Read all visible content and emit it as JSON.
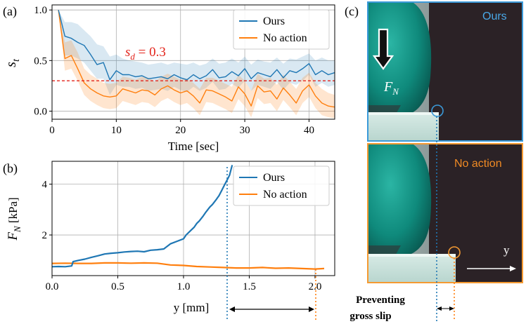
{
  "panels": {
    "a": {
      "label": "(a)"
    },
    "b": {
      "label": "(b)"
    },
    "c": {
      "label": "(c)"
    }
  },
  "photos": {
    "top_label": "Ours",
    "bottom_label": "No action",
    "force_symbol": "F",
    "force_subscript": "N",
    "axis_label": "y"
  },
  "annotation": {
    "line1": "Preventing",
    "line2": "gross slip"
  },
  "colors": {
    "ours": "#1f77b4",
    "no_action": "#ff7f0e",
    "threshold": "#e3241b",
    "grid": "#b0b0b0",
    "photo_top_border": "#3b9ad9",
    "photo_bottom_border": "#f59a32",
    "photo_ours_text": "#49a8e8",
    "photo_noaction_text": "#f08a24"
  },
  "chart_data": [
    {
      "id": "a",
      "type": "line",
      "title": "",
      "xlabel": "Time [sec]",
      "ylabel_symbol": "s",
      "ylabel_subscript": "t",
      "xlim": [
        0,
        44
      ],
      "ylim": [
        -0.08,
        1.05
      ],
      "xticks": [
        0,
        10,
        20,
        30,
        40
      ],
      "yticks": [
        0.0,
        0.5,
        1.0
      ],
      "xtick_labels": [
        "0",
        "10",
        "20",
        "30",
        "40"
      ],
      "ytick_labels": [
        "0.0",
        "0.5",
        "1.0"
      ],
      "grid": true,
      "legend_position": "top-right",
      "threshold": {
        "value": 0.3,
        "label_symbol": "s",
        "label_subscript": "d",
        "label_value": " = 0.3"
      },
      "series": [
        {
          "name": "Ours",
          "x": [
            1,
            2,
            3,
            4,
            5,
            6,
            7,
            8,
            9,
            10,
            11,
            12,
            13,
            14,
            15,
            16,
            17,
            18,
            19,
            20,
            21,
            22,
            23,
            24,
            25,
            26,
            27,
            28,
            29,
            30,
            31,
            32,
            33,
            34,
            35,
            36,
            37,
            38,
            39,
            40,
            41,
            42,
            43,
            44
          ],
          "values": [
            1.0,
            0.74,
            0.72,
            0.68,
            0.65,
            0.56,
            0.46,
            0.48,
            0.31,
            0.4,
            0.36,
            0.36,
            0.34,
            0.35,
            0.32,
            0.33,
            0.34,
            0.32,
            0.36,
            0.33,
            0.31,
            0.36,
            0.32,
            0.35,
            0.41,
            0.33,
            0.34,
            0.39,
            0.35,
            0.42,
            0.32,
            0.38,
            0.36,
            0.34,
            0.41,
            0.33,
            0.4,
            0.38,
            0.42,
            0.47,
            0.36,
            0.4,
            0.36,
            0.38
          ],
          "upper": [
            1.0,
            0.88,
            0.88,
            0.86,
            0.8,
            0.74,
            0.66,
            0.64,
            0.54,
            0.56,
            0.52,
            0.5,
            0.49,
            0.48,
            0.46,
            0.47,
            0.48,
            0.46,
            0.48,
            0.47,
            0.46,
            0.48,
            0.45,
            0.47,
            0.52,
            0.47,
            0.48,
            0.52,
            0.48,
            0.54,
            0.46,
            0.51,
            0.49,
            0.48,
            0.53,
            0.47,
            0.52,
            0.51,
            0.54,
            0.57,
            0.5,
            0.53,
            0.5,
            0.5
          ],
          "lower": [
            1.0,
            0.55,
            0.55,
            0.52,
            0.48,
            0.4,
            0.32,
            0.32,
            0.16,
            0.26,
            0.24,
            0.24,
            0.22,
            0.23,
            0.2,
            0.21,
            0.22,
            0.2,
            0.24,
            0.21,
            0.19,
            0.24,
            0.2,
            0.23,
            0.29,
            0.21,
            0.22,
            0.27,
            0.23,
            0.3,
            0.2,
            0.26,
            0.24,
            0.22,
            0.29,
            0.21,
            0.28,
            0.26,
            0.3,
            0.36,
            0.24,
            0.28,
            0.24,
            0.26
          ]
        },
        {
          "name": "No action",
          "x": [
            1,
            2,
            3,
            4,
            5,
            6,
            7,
            8,
            9,
            10,
            11,
            12,
            13,
            14,
            15,
            16,
            17,
            18,
            19,
            20,
            21,
            22,
            23,
            24,
            25,
            26,
            27,
            28,
            29,
            30,
            31,
            32,
            33,
            34,
            35,
            36,
            37,
            38,
            39,
            40,
            41,
            42,
            43,
            44
          ],
          "values": [
            1.0,
            0.52,
            0.55,
            0.42,
            0.28,
            0.22,
            0.18,
            0.15,
            0.14,
            0.15,
            0.22,
            0.2,
            0.18,
            0.21,
            0.2,
            0.16,
            0.22,
            0.25,
            0.21,
            0.18,
            0.2,
            0.15,
            0.08,
            0.21,
            0.2,
            0.17,
            0.14,
            0.1,
            0.24,
            0.17,
            0.05,
            0.25,
            0.19,
            0.2,
            0.12,
            0.23,
            0.16,
            0.08,
            0.2,
            0.26,
            0.15,
            0.08,
            0.05,
            0.04
          ],
          "upper": [
            1.0,
            0.68,
            0.7,
            0.58,
            0.42,
            0.36,
            0.32,
            0.28,
            0.27,
            0.28,
            0.34,
            0.33,
            0.31,
            0.34,
            0.33,
            0.29,
            0.34,
            0.37,
            0.34,
            0.31,
            0.32,
            0.28,
            0.22,
            0.33,
            0.33,
            0.3,
            0.27,
            0.24,
            0.36,
            0.3,
            0.2,
            0.37,
            0.32,
            0.33,
            0.26,
            0.36,
            0.29,
            0.22,
            0.33,
            0.38,
            0.28,
            0.22,
            0.18,
            0.16
          ],
          "lower": [
            1.0,
            0.4,
            0.42,
            0.3,
            0.16,
            0.1,
            0.06,
            0.03,
            0.02,
            0.03,
            0.1,
            0.08,
            0.06,
            0.09,
            0.08,
            0.04,
            0.1,
            0.13,
            0.09,
            0.06,
            0.08,
            0.03,
            -0.04,
            0.09,
            0.08,
            0.05,
            0.02,
            -0.02,
            0.12,
            0.05,
            -0.06,
            0.13,
            0.07,
            0.08,
            0.0,
            0.11,
            0.04,
            -0.04,
            0.08,
            0.14,
            0.03,
            -0.04,
            -0.06,
            -0.07
          ]
        }
      ]
    },
    {
      "id": "b",
      "type": "line",
      "title": "",
      "xlabel": "y [mm]",
      "ylabel_symbol": "F",
      "ylabel_subscript": "N",
      "ylabel_unit": " [kPa]",
      "xlim": [
        0.0,
        2.15
      ],
      "ylim": [
        0.4,
        4.9
      ],
      "xticks": [
        0.0,
        0.5,
        1.0,
        1.5,
        2.0
      ],
      "yticks": [
        2,
        4
      ],
      "xtick_labels": [
        "0.0",
        "0.5",
        "1.0",
        "1.5",
        "2.0"
      ],
      "ytick_labels": [
        "2",
        "4"
      ],
      "grid": true,
      "legend_position": "top-right",
      "series": [
        {
          "name": "Ours",
          "x": [
            0.0,
            0.05,
            0.1,
            0.15,
            0.16,
            0.2,
            0.25,
            0.3,
            0.35,
            0.4,
            0.45,
            0.5,
            0.55,
            0.6,
            0.65,
            0.7,
            0.75,
            0.8,
            0.85,
            0.9,
            0.95,
            1.0,
            1.02,
            1.05,
            1.08,
            1.1,
            1.12,
            1.15,
            1.17,
            1.2,
            1.22,
            1.25,
            1.27,
            1.29,
            1.31,
            1.33,
            1.35,
            1.37
          ],
          "values": [
            0.75,
            0.76,
            0.75,
            0.78,
            0.95,
            1.0,
            1.05,
            1.12,
            1.18,
            1.25,
            1.28,
            1.3,
            1.33,
            1.35,
            1.36,
            1.34,
            1.4,
            1.42,
            1.45,
            1.65,
            1.75,
            1.85,
            2.0,
            2.15,
            2.3,
            2.45,
            2.55,
            2.75,
            2.9,
            3.1,
            3.2,
            3.4,
            3.55,
            3.75,
            3.95,
            4.15,
            4.35,
            4.75
          ]
        },
        {
          "name": "No action",
          "x": [
            0.0,
            0.1,
            0.2,
            0.3,
            0.4,
            0.5,
            0.6,
            0.7,
            0.8,
            0.9,
            1.0,
            1.1,
            1.2,
            1.3,
            1.4,
            1.5,
            1.6,
            1.7,
            1.8,
            1.9,
            2.0,
            2.07
          ],
          "values": [
            0.88,
            0.89,
            0.88,
            0.88,
            0.9,
            0.9,
            0.89,
            0.9,
            0.89,
            0.82,
            0.8,
            0.76,
            0.74,
            0.72,
            0.7,
            0.7,
            0.72,
            0.69,
            0.7,
            0.68,
            0.66,
            0.68
          ]
        }
      ]
    }
  ]
}
